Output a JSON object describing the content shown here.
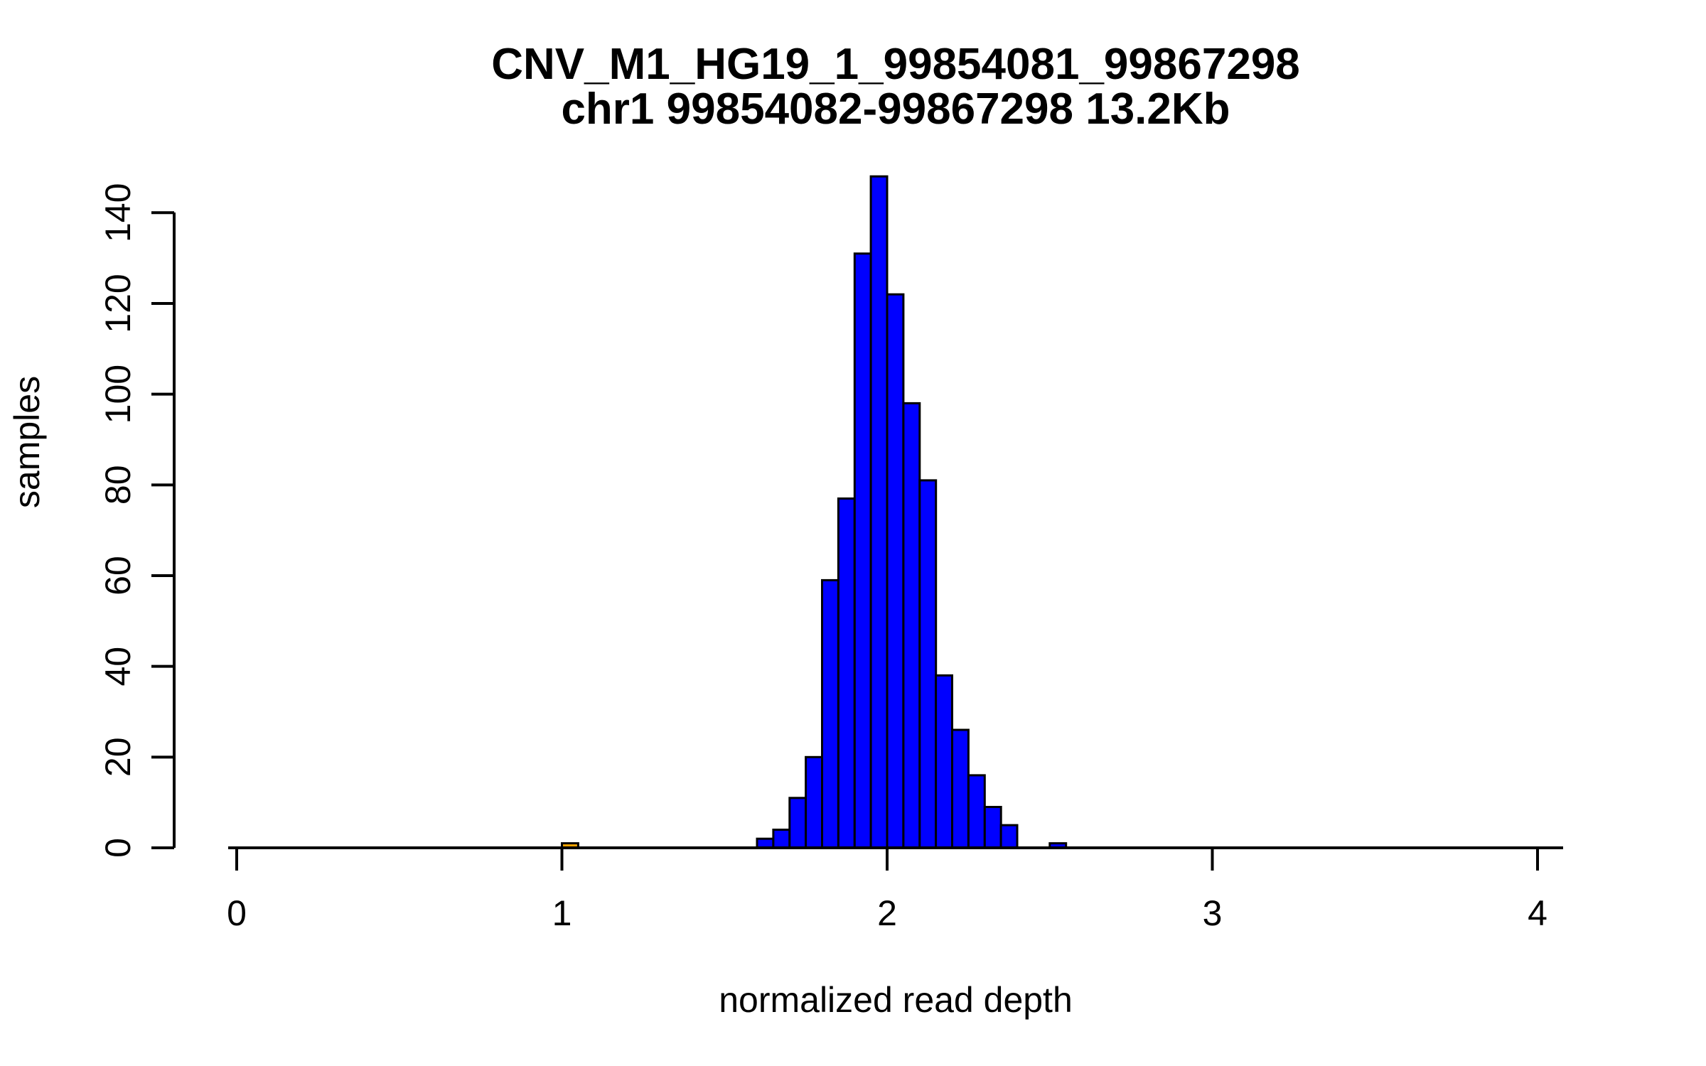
{
  "chart_data": {
    "type": "bar",
    "chart_kind": "histogram",
    "title": "CNV_M1_HG19_1_99854081_99867298",
    "subtitle": "chr1 99854082-99867298 13.2Kb",
    "xlabel": "normalized read depth",
    "ylabel": "samples",
    "x_ticks": [
      0,
      1,
      2,
      3,
      4
    ],
    "y_ticks": [
      0,
      20,
      40,
      60,
      80,
      100,
      120,
      140
    ],
    "xlim": [
      0,
      4.1
    ],
    "ylim": [
      0,
      148
    ],
    "bin_width": 0.05,
    "grid": false,
    "legend_position": "none",
    "colors": {
      "bar_fill": "#0000FF",
      "highlight_fill": "#FFA500",
      "bar_stroke": "#000000",
      "axis": "#000000",
      "background": "#FFFFFF"
    },
    "bins": [
      {
        "x": 1.0,
        "count": 1,
        "highlight": true
      },
      {
        "x": 1.6,
        "count": 2
      },
      {
        "x": 1.65,
        "count": 4
      },
      {
        "x": 1.7,
        "count": 11
      },
      {
        "x": 1.75,
        "count": 20
      },
      {
        "x": 1.8,
        "count": 59
      },
      {
        "x": 1.85,
        "count": 77
      },
      {
        "x": 1.9,
        "count": 131
      },
      {
        "x": 1.95,
        "count": 148
      },
      {
        "x": 2.0,
        "count": 122
      },
      {
        "x": 2.05,
        "count": 98
      },
      {
        "x": 2.1,
        "count": 81
      },
      {
        "x": 2.15,
        "count": 38
      },
      {
        "x": 2.2,
        "count": 26
      },
      {
        "x": 2.25,
        "count": 16
      },
      {
        "x": 2.3,
        "count": 9
      },
      {
        "x": 2.35,
        "count": 5
      },
      {
        "x": 2.5,
        "count": 1
      }
    ]
  }
}
